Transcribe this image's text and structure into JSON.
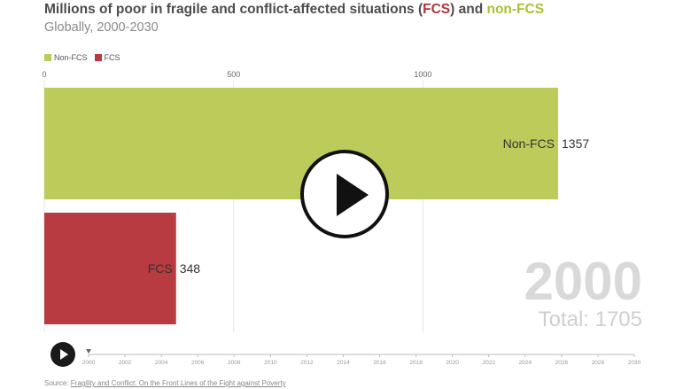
{
  "header": {
    "title_prefix": "Millions of poor in fragile and conflict-affected situations (",
    "title_fcs": "FCS",
    "title_middle": ") and ",
    "title_nonfcs": "non-FCS",
    "subtitle": "Globally, 2000-2030"
  },
  "colors": {
    "nonfcs": "#bdcb5b",
    "fcs": "#b73b41",
    "grid": "#e6e6e6"
  },
  "chart_data": {
    "type": "bar",
    "orientation": "horizontal",
    "categories": [
      "Non-FCS",
      "FCS"
    ],
    "values": [
      1357,
      348
    ],
    "xlim": [
      0,
      1357
    ],
    "x_ticks": [
      0,
      500,
      1000
    ],
    "legend": [
      "Non-FCS",
      "FCS"
    ],
    "legend_position": "top-left",
    "grid": true,
    "current_year": "2000",
    "total_label": "Total: 1705"
  },
  "timeline": {
    "years": [
      "2000",
      "2002",
      "2004",
      "2006",
      "2008",
      "2010",
      "2012",
      "2014",
      "2016",
      "2018",
      "2020",
      "2022",
      "2024",
      "2026",
      "2028",
      "2030"
    ]
  },
  "source": {
    "prefix": "Source: ",
    "link_text": "Fragility and Conflict: On the Front Lines of the Fight against Poverty"
  },
  "controls": {
    "video_play_icon": "play-icon",
    "timeline_play_icon": "play-icon"
  }
}
